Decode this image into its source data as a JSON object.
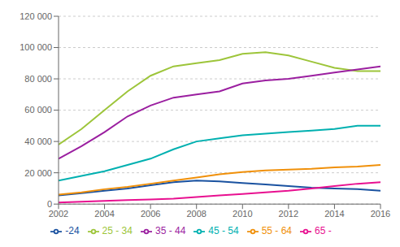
{
  "chart_data": {
    "type": "line",
    "x": [
      2002,
      2003,
      2004,
      2005,
      2006,
      2007,
      2008,
      2009,
      2010,
      2011,
      2012,
      2013,
      2014,
      2015,
      2016
    ],
    "series": [
      {
        "name": "-24",
        "color": "#1a52a0",
        "values": [
          5500,
          7000,
          8500,
          10000,
          12000,
          14000,
          15000,
          14500,
          13500,
          12500,
          11500,
          10500,
          10000,
          9500,
          8500
        ]
      },
      {
        "name": "25 - 34",
        "color": "#9dc53a",
        "values": [
          38000,
          48000,
          60000,
          72000,
          82000,
          88000,
          90000,
          92000,
          96000,
          97000,
          95000,
          91000,
          87000,
          85000,
          85000
        ]
      },
      {
        "name": "35 - 44",
        "color": "#9b1fa0",
        "values": [
          29000,
          37000,
          46000,
          56000,
          63000,
          68000,
          70000,
          72000,
          77000,
          79000,
          80000,
          82000,
          84000,
          86000,
          88000
        ]
      },
      {
        "name": "45 - 54",
        "color": "#00b0b0",
        "values": [
          15000,
          18000,
          21000,
          25000,
          29000,
          35000,
          40000,
          42000,
          44000,
          45000,
          46000,
          47000,
          48000,
          50000,
          50000
        ]
      },
      {
        "name": "55 - 64",
        "color": "#f0900a",
        "values": [
          6000,
          7500,
          9500,
          11000,
          13000,
          15000,
          17000,
          19000,
          20500,
          21500,
          22000,
          22500,
          23500,
          24000,
          25000
        ]
      },
      {
        "name": "65 -",
        "color": "#e81090",
        "values": [
          1000,
          1500,
          2000,
          2500,
          3000,
          3500,
          4500,
          5500,
          6500,
          7500,
          8500,
          10000,
          11500,
          13000,
          14000
        ]
      }
    ],
    "xlim": [
      2002,
      2016
    ],
    "xticks": [
      2002,
      2004,
      2006,
      2008,
      2010,
      2012,
      2014,
      2016
    ],
    "ylim": [
      0,
      120000
    ],
    "yticks": [
      0,
      {
        "value": 20000,
        "label": "20 000"
      },
      {
        "value": 40000,
        "label": "40 000"
      },
      {
        "value": 60000,
        "label": "60 000"
      },
      {
        "value": 80000,
        "label": "80 000"
      },
      {
        "value": 100000,
        "label": "100 000"
      },
      {
        "value": 120000,
        "label": "120 000"
      }
    ],
    "grid": true,
    "legend": "bottom"
  }
}
